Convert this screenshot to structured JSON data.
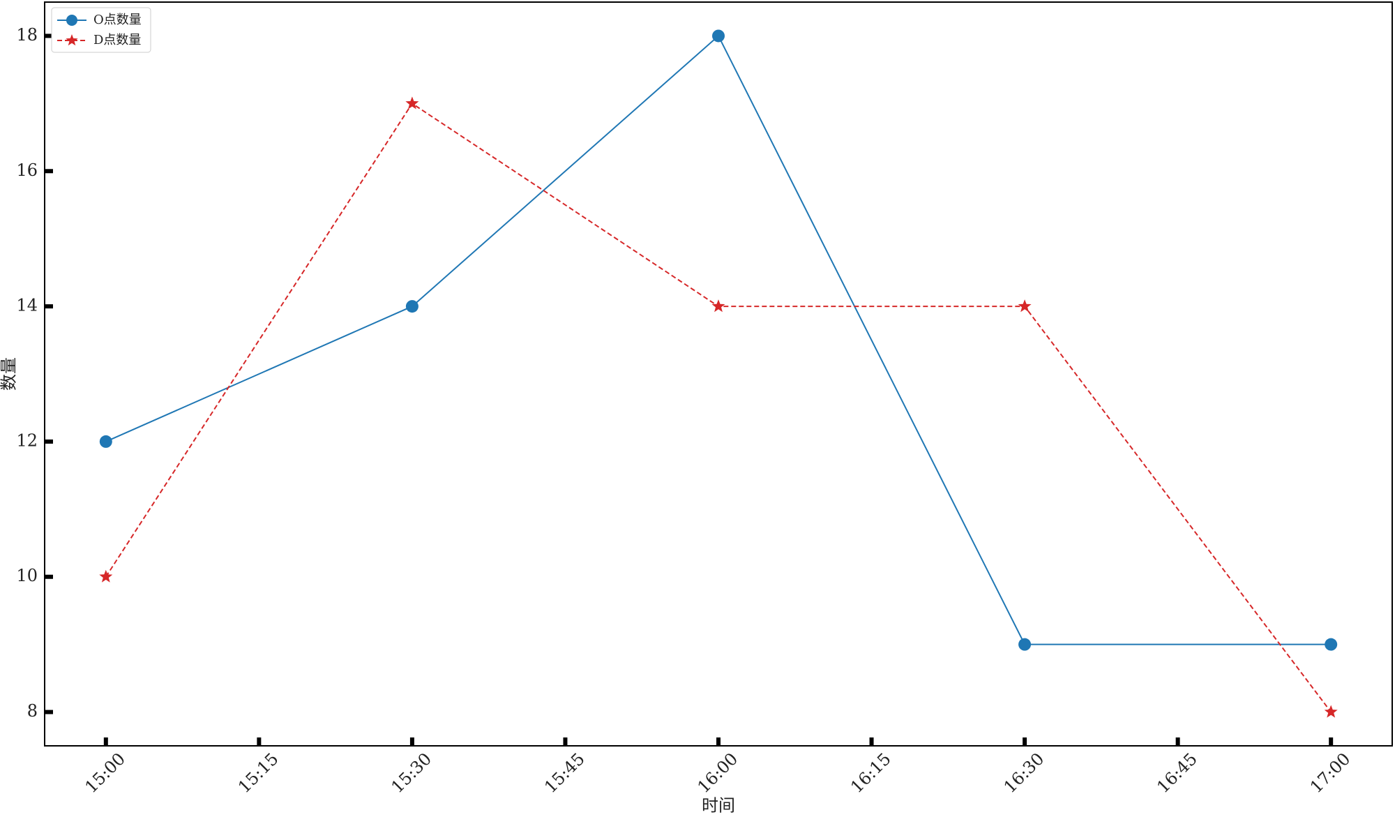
{
  "chart_data": {
    "type": "line",
    "x_label": "时间",
    "y_label": "数量",
    "x": [
      "15:00",
      "15:30",
      "16:00",
      "16:30",
      "17:00"
    ],
    "xlim": [
      "14:54",
      "17:06"
    ],
    "xticks": [
      "15:00",
      "15:15",
      "15:30",
      "15:45",
      "16:00",
      "16:15",
      "16:30",
      "16:45",
      "17:00"
    ],
    "ylim": [
      7.5,
      18.5
    ],
    "yticks": [
      8,
      10,
      12,
      14,
      16,
      18
    ],
    "legend": "upper left",
    "series": [
      {
        "name": "O点数量",
        "color": "#1f77b4",
        "marker": "circle",
        "dash": "solid",
        "values": [
          12,
          14,
          18,
          9,
          9
        ]
      },
      {
        "name": "D点数量",
        "color": "#d62728",
        "marker": "star",
        "dash": "dashed",
        "values": [
          10,
          17,
          14,
          14,
          8
        ]
      }
    ]
  }
}
